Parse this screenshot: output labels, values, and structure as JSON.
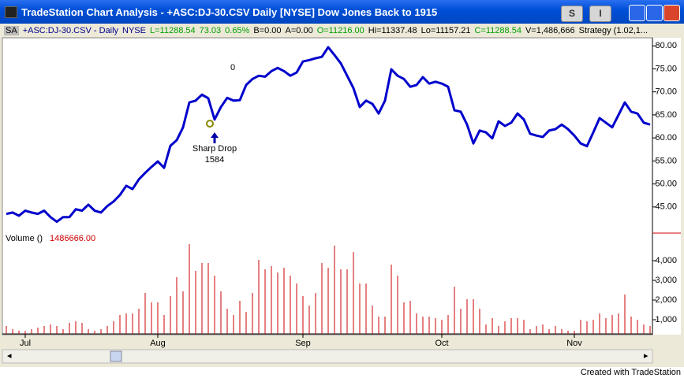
{
  "window": {
    "title": "TradeStation Chart Analysis - +ASC:DJ-30.CSV  Daily  [NYSE] Dow Jones Back to 1915",
    "buttons": [
      "S",
      "I"
    ],
    "footer": "Created with TradeStation"
  },
  "status_line": [
    {
      "text": "SA",
      "color": "#000000"
    },
    {
      "text": "+ASC:DJ-30.CSV - Daily",
      "color": "#00008b"
    },
    {
      "text": "NYSE",
      "color": "#00008b"
    },
    {
      "text": "L=11288.54",
      "color": "#00a000"
    },
    {
      "text": "73.03",
      "color": "#00a000"
    },
    {
      "text": "0.65%",
      "color": "#00a000"
    },
    {
      "text": "B=0.00",
      "color": "#000000"
    },
    {
      "text": "A=0.00",
      "color": "#000000"
    },
    {
      "text": "O=11216.00",
      "color": "#00a000"
    },
    {
      "text": "Hi=11337.48",
      "color": "#000000"
    },
    {
      "text": "Lo=11157.21",
      "color": "#000000"
    },
    {
      "text": "C=11288.54",
      "color": "#00a000"
    },
    {
      "text": "V=1,486,666",
      "color": "#000000"
    },
    {
      "text": "Strategy (1.02,1...",
      "color": "#000000"
    }
  ],
  "chart_data": [
    {
      "type": "line",
      "color": "#0000cc",
      "annotations": [
        "0",
        "Sharp Drop",
        "1584"
      ],
      "values": [
        43.5,
        43.8,
        43.1,
        44.2,
        43.8,
        43.5,
        44.2,
        42.8,
        41.8,
        42.8,
        42.8,
        44.5,
        44.2,
        45.5,
        44.2,
        43.8,
        45.2,
        46.2,
        47.6,
        49.6,
        48.9,
        51.0,
        52.4,
        53.7,
        54.9,
        53.5,
        58.3,
        59.5,
        62.3,
        67.7,
        68.1,
        69.4,
        68.6,
        64.0,
        66.7,
        68.7,
        68.1,
        68.2,
        71.5,
        72.8,
        73.5,
        73.3,
        74.5,
        75.2,
        74.5,
        73.5,
        74.2,
        76.6,
        76.9,
        77.3,
        77.6,
        79.7,
        78.0,
        76.2,
        73.5,
        70.8,
        66.7,
        68.1,
        67.4,
        65.3,
        68.1,
        74.9,
        73.5,
        72.8,
        71.1,
        71.5,
        73.2,
        71.8,
        72.2,
        71.8,
        71.1,
        66.0,
        65.7,
        62.9,
        58.8,
        61.6,
        61.2,
        59.9,
        63.6,
        62.6,
        63.3,
        65.3,
        64.0,
        60.9,
        60.5,
        60.2,
        61.6,
        61.9,
        62.9,
        61.9,
        60.5,
        58.8,
        58.2,
        61.2,
        64.3,
        63.3,
        62.3,
        65.0,
        67.7,
        65.7,
        65.3,
        63.3,
        62.9
      ],
      "ylim": [
        39.5,
        81.4
      ],
      "yticks": [
        {
          "value": 45,
          "label": "45.00"
        },
        {
          "value": 50,
          "label": "50.00"
        },
        {
          "value": 55,
          "label": "55.00"
        },
        {
          "value": 60,
          "label": "60.00"
        },
        {
          "value": 65,
          "label": "65.00"
        },
        {
          "value": 70,
          "label": "70.00"
        },
        {
          "value": 75,
          "label": "75.00"
        },
        {
          "value": 80,
          "label": "80.00"
        }
      ]
    },
    {
      "type": "bar",
      "title": "Volume ()",
      "last_value": "1486666.00",
      "color": "#cc0000",
      "categories": [
        null,
        null,
        null,
        "Jul",
        null,
        null,
        null,
        null,
        null,
        null,
        null,
        null,
        null,
        null,
        null,
        null,
        null,
        null,
        null,
        null,
        null,
        null,
        null,
        null,
        "Aug",
        null,
        null,
        null,
        null,
        null,
        null,
        null,
        null,
        null,
        null,
        null,
        null,
        null,
        null,
        null,
        null,
        null,
        null,
        null,
        null,
        null,
        null,
        "Sep",
        null,
        null,
        null,
        null,
        null,
        null,
        null,
        null,
        null,
        null,
        null,
        null,
        null,
        null,
        null,
        null,
        null,
        null,
        null,
        null,
        null,
        "Oct",
        null,
        null,
        null,
        null,
        null,
        null,
        null,
        null,
        null,
        null,
        null,
        null,
        null,
        null,
        null,
        null,
        null,
        null,
        null,
        null,
        "Nov",
        null,
        null,
        null,
        null,
        null,
        null,
        null,
        null,
        null,
        null,
        null,
        null
      ],
      "values": [
        680,
        520,
        440,
        440,
        520,
        600,
        680,
        760,
        680,
        520,
        840,
        920,
        840,
        520,
        440,
        520,
        680,
        920,
        1240,
        1320,
        1320,
        1560,
        2360,
        1880,
        1880,
        1240,
        2200,
        3160,
        2440,
        4840,
        3480,
        3880,
        3880,
        3240,
        2440,
        1560,
        1240,
        1960,
        1400,
        2360,
        4040,
        3560,
        3720,
        3400,
        3640,
        3240,
        2840,
        2200,
        1720,
        2360,
        3880,
        3640,
        4760,
        3560,
        3560,
        4440,
        2840,
        2840,
        1720,
        1160,
        1160,
        3800,
        3240,
        1880,
        1960,
        1320,
        1160,
        1160,
        1080,
        1000,
        1240,
        2680,
        1560,
        2040,
        2040,
        1560,
        760,
        1080,
        680,
        920,
        1080,
        1080,
        1000,
        520,
        680,
        760,
        520,
        680,
        520,
        440,
        440,
        1000,
        920,
        1000,
        1320,
        1080,
        1240,
        1320,
        2280,
        1160,
        1000,
        760,
        680
      ],
      "ylim": [
        280,
        5320
      ],
      "yticks": [
        {
          "value": 1000,
          "label": "1,000"
        },
        {
          "value": 2000,
          "label": "2,000"
        },
        {
          "value": 3000,
          "label": "3,000"
        },
        {
          "value": 4000,
          "label": "4,000"
        }
      ]
    }
  ]
}
